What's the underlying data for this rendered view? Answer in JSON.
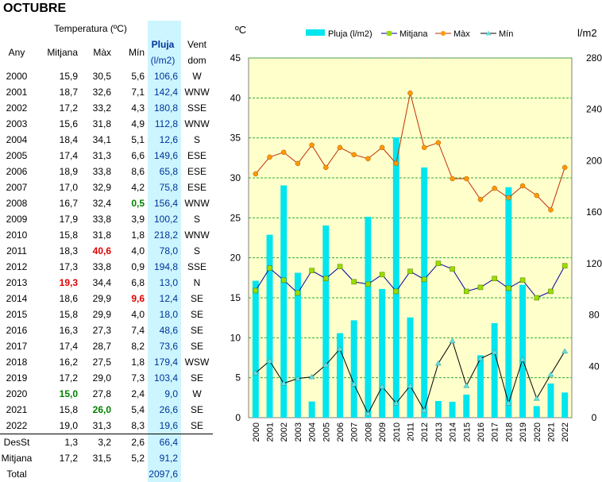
{
  "title": "OCTUBRE",
  "table": {
    "group_header": "Temperatura (ºC)",
    "headers": {
      "year": "Any",
      "mean": "Mitjana",
      "max": "Màx",
      "min": "Mín",
      "rain": "Pluja",
      "rain_unit": "(l/m2)",
      "wind": "Vent",
      "wind_sub": "dom"
    },
    "rows": [
      {
        "year": "2000",
        "mean": "15,9",
        "max": "30,5",
        "min": "5,6",
        "rain": "106,6",
        "wind": "W"
      },
      {
        "year": "2001",
        "mean": "18,7",
        "max": "32,6",
        "min": "7,1",
        "rain": "142,4",
        "wind": "WNW"
      },
      {
        "year": "2002",
        "mean": "17,2",
        "max": "33,2",
        "min": "4,3",
        "rain": "180,8",
        "wind": "SSE"
      },
      {
        "year": "2003",
        "mean": "15,6",
        "max": "31,8",
        "min": "4,9",
        "rain": "112,8",
        "wind": "WNW"
      },
      {
        "year": "2004",
        "mean": "18,4",
        "max": "34,1",
        "min": "5,1",
        "rain": "12,6",
        "wind": "S"
      },
      {
        "year": "2005",
        "mean": "17,4",
        "max": "31,3",
        "min": "6,6",
        "rain": "149,6",
        "wind": "ESE"
      },
      {
        "year": "2006",
        "mean": "18,9",
        "max": "33,8",
        "min": "8,6",
        "rain": "65,8",
        "wind": "ESE"
      },
      {
        "year": "2007",
        "mean": "17,0",
        "max": "32,9",
        "min": "4,2",
        "rain": "75,8",
        "wind": "ESE"
      },
      {
        "year": "2008",
        "mean": "16,7",
        "max": "32,4",
        "min": "0,5",
        "rain": "156,4",
        "wind": "WNW"
      },
      {
        "year": "2009",
        "mean": "17,9",
        "max": "33,8",
        "min": "3,9",
        "rain": "100,2",
        "wind": "S"
      },
      {
        "year": "2010",
        "mean": "15,8",
        "max": "31,8",
        "min": "1,8",
        "rain": "218,2",
        "wind": "WNW"
      },
      {
        "year": "2011",
        "mean": "18,3",
        "max": "40,6",
        "min": "4,0",
        "rain": "78,0",
        "wind": "S"
      },
      {
        "year": "2012",
        "mean": "17,3",
        "max": "33,8",
        "min": "0,9",
        "rain": "194,8",
        "wind": "SSE"
      },
      {
        "year": "2013",
        "mean": "19,3",
        "max": "34,4",
        "min": "6,8",
        "rain": "13,0",
        "wind": "N"
      },
      {
        "year": "2014",
        "mean": "18,6",
        "max": "29,9",
        "min": "9,6",
        "rain": "12,4",
        "wind": "SE"
      },
      {
        "year": "2015",
        "mean": "15,8",
        "max": "29,9",
        "min": "4,0",
        "rain": "18,0",
        "wind": "SE"
      },
      {
        "year": "2016",
        "mean": "16,3",
        "max": "27,3",
        "min": "7,4",
        "rain": "48,6",
        "wind": "SE"
      },
      {
        "year": "2017",
        "mean": "17,4",
        "max": "28,7",
        "min": "8,2",
        "rain": "73,6",
        "wind": "SE"
      },
      {
        "year": "2018",
        "mean": "16,2",
        "max": "27,5",
        "min": "1,8",
        "rain": "179,4",
        "wind": "WSW"
      },
      {
        "year": "2019",
        "mean": "17,2",
        "max": "29,0",
        "min": "7,3",
        "rain": "103,4",
        "wind": "SE"
      },
      {
        "year": "2020",
        "mean": "15,0",
        "max": "27,8",
        "min": "2,4",
        "rain": "9,0",
        "wind": "W"
      },
      {
        "year": "2021",
        "mean": "15,8",
        "max": "26,0",
        "min": "5,4",
        "rain": "26,6",
        "wind": "SE"
      },
      {
        "year": "2022",
        "mean": "19,0",
        "max": "31,3",
        "min": "8,3",
        "rain": "19,6",
        "wind": "SE"
      }
    ],
    "summary": [
      {
        "label": "DesSt",
        "mean": "1,3",
        "max": "3,2",
        "min": "2,6",
        "rain": "66,4"
      },
      {
        "label": "Mitjana",
        "mean": "17,2",
        "max": "31,5",
        "min": "5,2",
        "rain": "91,2"
      },
      {
        "label": "Total",
        "mean": "",
        "max": "",
        "min": "",
        "rain": "2097,6"
      }
    ]
  },
  "chart_data": {
    "type": "bar",
    "left_unit": "ºC",
    "right_unit": "l/m2",
    "ylim_left": [
      0,
      45
    ],
    "ylim_right": [
      0,
      280
    ],
    "left_ticks": [
      "0",
      "5",
      "10",
      "15",
      "20",
      "25",
      "30",
      "35",
      "40",
      "45"
    ],
    "right_ticks": [
      "0",
      "40",
      "80",
      "120",
      "160",
      "200",
      "240",
      "280"
    ],
    "categories": [
      "2000",
      "2001",
      "2002",
      "2003",
      "2004",
      "2005",
      "2006",
      "2007",
      "2008",
      "2009",
      "2010",
      "2011",
      "2012",
      "2013",
      "2014",
      "2015",
      "2016",
      "2017",
      "2018",
      "2019",
      "2020",
      "2021",
      "2022"
    ],
    "series": [
      {
        "name": "Pluja (l/m2)",
        "kind": "bar",
        "axis": "right",
        "color": "#00e5ee",
        "values": [
          106.6,
          142.4,
          180.8,
          112.8,
          12.6,
          149.6,
          65.8,
          75.8,
          156.4,
          100.2,
          218.2,
          78.0,
          194.8,
          13.0,
          12.4,
          18.0,
          48.6,
          73.6,
          179.4,
          103.4,
          9.0,
          26.6,
          19.6
        ]
      },
      {
        "name": "Mitjana",
        "kind": "line",
        "axis": "left",
        "color": "#0000a0",
        "marker": "#99dd00",
        "values": [
          15.9,
          18.7,
          17.2,
          15.6,
          18.4,
          17.4,
          18.9,
          17.0,
          16.7,
          17.9,
          15.8,
          18.3,
          17.3,
          19.3,
          18.6,
          15.8,
          16.3,
          17.4,
          16.2,
          17.2,
          15.0,
          15.8,
          19.0
        ]
      },
      {
        "name": "Màx",
        "kind": "line",
        "axis": "left",
        "color": "#c03000",
        "marker": "#ff9900",
        "values": [
          30.5,
          32.6,
          33.2,
          31.8,
          34.1,
          31.3,
          33.8,
          32.9,
          32.4,
          33.8,
          31.8,
          40.6,
          33.8,
          34.4,
          29.9,
          29.9,
          27.3,
          28.7,
          27.5,
          29.0,
          27.8,
          26.0,
          31.3
        ]
      },
      {
        "name": "Mín",
        "kind": "line",
        "axis": "left",
        "color": "#000000",
        "marker": "#66dddd",
        "values": [
          5.6,
          7.1,
          4.3,
          4.9,
          5.1,
          6.6,
          8.6,
          4.2,
          0.5,
          3.9,
          1.8,
          4.0,
          0.9,
          6.8,
          9.6,
          4.0,
          7.4,
          8.2,
          1.8,
          7.3,
          2.4,
          5.4,
          8.3
        ]
      }
    ],
    "grid": true
  }
}
